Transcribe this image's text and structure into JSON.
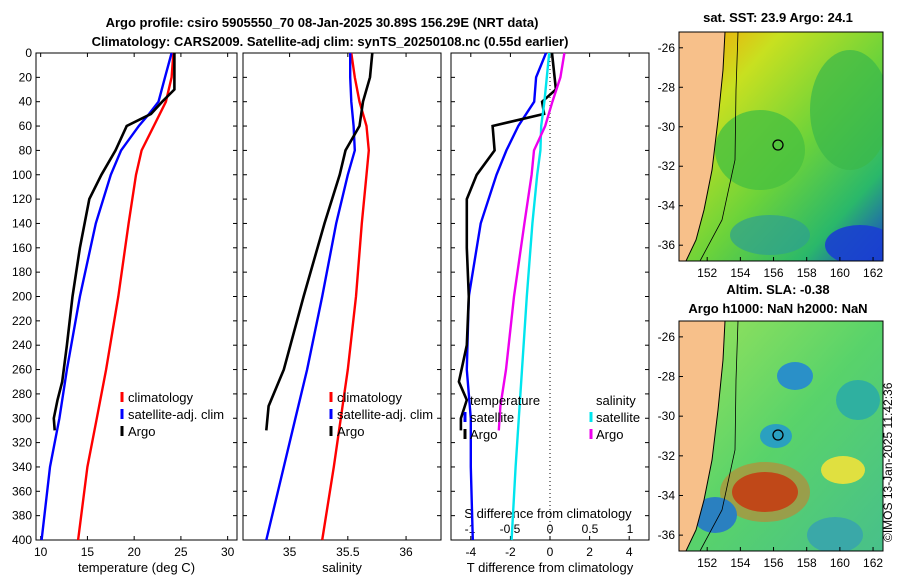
{
  "title": {
    "line1": "Argo profile: csiro 5905550_70 08-Jan-2025 30.89S 156.29E (NRT data)",
    "line2": "Climatology: CARS2009. Satellite-adj clim: synTS_20250108.nc (0.55d earlier)"
  },
  "timestamp": "©IMOS 13-Jan-2025 11:42:36",
  "colors": {
    "climatology": "#ff0000",
    "satellite": "#0000ff",
    "argo": "#000000",
    "t_satellite": "#0000ff",
    "s_satellite": "#00e5ee",
    "s_argo": "#ee00ee",
    "land": "#f7c08a"
  },
  "chart_data": [
    {
      "type": "line",
      "panel": "temperature",
      "xlabel": "temperature (deg C)",
      "ylabel": "",
      "xlim": [
        9.5,
        31
      ],
      "ylim": [
        400,
        0
      ],
      "xticks": [
        10,
        15,
        20,
        25,
        30
      ],
      "yticks": [
        0,
        20,
        40,
        60,
        80,
        100,
        120,
        140,
        160,
        180,
        200,
        220,
        240,
        260,
        280,
        300,
        320,
        340,
        360,
        380,
        400
      ],
      "legend": [
        "climatology",
        "satellite-adj. clim",
        "Argo"
      ],
      "series": [
        {
          "name": "climatology",
          "depth": [
            0,
            20,
            40,
            60,
            80,
            100,
            140,
            200,
            260,
            300,
            340,
            400
          ],
          "values": [
            24.2,
            24.0,
            23.4,
            22.1,
            20.8,
            20.2,
            19.4,
            18.3,
            17.0,
            16.0,
            15.0,
            14.0
          ]
        },
        {
          "name": "satellite-adj. clim",
          "depth": [
            0,
            20,
            40,
            50,
            60,
            80,
            100,
            140,
            200,
            260,
            300,
            340,
            400
          ],
          "values": [
            24.0,
            23.3,
            22.6,
            21.6,
            20.5,
            18.6,
            17.5,
            15.9,
            14.2,
            12.8,
            12.0,
            11.0,
            10.1
          ]
        },
        {
          "name": "Argo",
          "depth": [
            0,
            30,
            40,
            50,
            60,
            80,
            100,
            120,
            160,
            200,
            240,
            270,
            285,
            300,
            310
          ],
          "values": [
            24.3,
            24.3,
            23.0,
            21.8,
            19.2,
            18.0,
            16.5,
            15.2,
            14.2,
            13.4,
            12.8,
            12.3,
            11.8,
            11.4,
            11.5
          ]
        }
      ]
    },
    {
      "type": "line",
      "panel": "salinity",
      "xlabel": "salinity",
      "xlim": [
        34.6,
        36.3
      ],
      "ylim": [
        400,
        0
      ],
      "xticks": [
        35,
        35.5,
        36
      ],
      "legend": [
        "climatology",
        "satellite-adj. clim",
        "Argo"
      ],
      "series": [
        {
          "name": "climatology",
          "depth": [
            0,
            20,
            40,
            60,
            80,
            100,
            140,
            200,
            260,
            300,
            340,
            400
          ],
          "values": [
            35.53,
            35.56,
            35.6,
            35.66,
            35.68,
            35.66,
            35.62,
            35.57,
            35.5,
            35.44,
            35.38,
            35.28
          ]
        },
        {
          "name": "satellite-adj. clim",
          "depth": [
            0,
            20,
            40,
            60,
            80,
            100,
            140,
            200,
            260,
            300,
            340,
            400
          ],
          "values": [
            35.52,
            35.52,
            35.53,
            35.55,
            35.56,
            35.5,
            35.4,
            35.28,
            35.15,
            35.05,
            34.95,
            34.8
          ]
        },
        {
          "name": "Argo",
          "depth": [
            0,
            20,
            40,
            60,
            80,
            100,
            140,
            200,
            260,
            290,
            310
          ],
          "values": [
            35.71,
            35.69,
            35.63,
            35.6,
            35.48,
            35.43,
            35.3,
            35.12,
            34.95,
            34.82,
            34.8
          ]
        }
      ]
    },
    {
      "type": "line",
      "panel": "difference",
      "xlabel": "T difference from climatology",
      "xlabel_top": "S difference from climatology",
      "xlim": [
        -5,
        5
      ],
      "ylim": [
        400,
        0
      ],
      "xticks": [
        -4,
        -2,
        0,
        2,
        4
      ],
      "xticks_top": [
        -1,
        -0.5,
        0,
        0.5,
        1
      ],
      "legend_t": {
        "title": "temperature",
        "items": [
          "satellite",
          "Argo"
        ]
      },
      "legend_s": {
        "title": "salinity",
        "items": [
          "satellite",
          "Argo"
        ]
      },
      "series": [
        {
          "name": "T satellite",
          "depth": [
            0,
            20,
            40,
            60,
            80,
            100,
            140,
            200,
            260,
            300,
            340,
            400
          ],
          "values": [
            -0.2,
            -0.7,
            -0.8,
            -1.6,
            -2.2,
            -2.7,
            -3.5,
            -4.1,
            -4.2,
            -4.0,
            -4.0,
            -3.9
          ]
        },
        {
          "name": "T Argo",
          "depth": [
            0,
            30,
            40,
            50,
            60,
            80,
            100,
            120,
            160,
            200,
            240,
            270,
            285,
            300,
            310
          ],
          "values": [
            0.1,
            0.3,
            -0.4,
            -0.3,
            -2.9,
            -2.8,
            -3.7,
            -4.2,
            -4.2,
            -4.1,
            -4.2,
            -4.6,
            -4.2,
            -4.5,
            -4.5
          ]
        },
        {
          "name": "S satellite",
          "depth": [
            0,
            20,
            40,
            60,
            80,
            100,
            140,
            200,
            260,
            300,
            340,
            400
          ],
          "values": [
            -0.01,
            -0.04,
            -0.07,
            -0.11,
            -0.12,
            -0.16,
            -0.22,
            -0.29,
            -0.35,
            -0.39,
            -0.43,
            -0.48
          ]
        },
        {
          "name": "S Argo",
          "depth": [
            0,
            20,
            40,
            60,
            80,
            100,
            140,
            200,
            260,
            290,
            310
          ],
          "values": [
            0.18,
            0.13,
            0.03,
            -0.06,
            -0.2,
            -0.23,
            -0.32,
            -0.45,
            -0.55,
            -0.62,
            -0.64
          ]
        }
      ]
    },
    {
      "type": "heatmap",
      "panel": "SST map",
      "title": "sat. SST: 23.9 Argo: 24.1",
      "yticks": [
        -26,
        -28,
        -30,
        -32,
        -34,
        -36
      ],
      "xticks": [
        152,
        154,
        156,
        158,
        160,
        162
      ],
      "marker": {
        "lon": 156.29,
        "lat": -30.89
      }
    },
    {
      "type": "heatmap",
      "panel": "SLA map",
      "title_line1": "Altim. SLA: -0.38",
      "title_line2": "Argo h1000: NaN h2000: NaN",
      "yticks": [
        -26,
        -28,
        -30,
        -32,
        -34,
        -36
      ],
      "xticks": [
        152,
        154,
        156,
        158,
        160,
        162
      ],
      "marker": {
        "lon": 156.29,
        "lat": -30.89
      }
    }
  ]
}
